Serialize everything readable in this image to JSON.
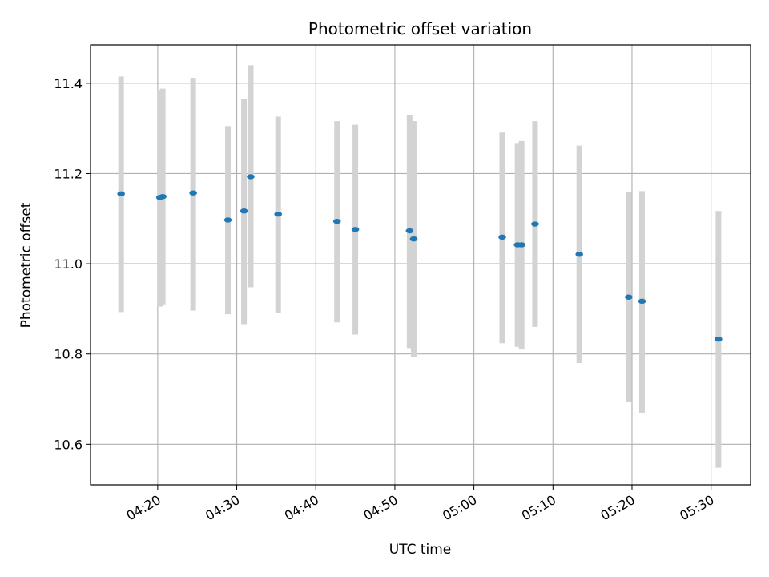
{
  "chart_data": {
    "type": "scatter",
    "title": "Photometric offset variation",
    "xlabel": "UTC time",
    "ylabel": "Photometric offset",
    "x_axis_type": "time",
    "xlim": [
      "04:11:30",
      "05:35:00"
    ],
    "ylim": [
      10.51,
      11.485
    ],
    "x_ticks": [
      "04:20",
      "04:30",
      "04:40",
      "04:50",
      "05:00",
      "05:10",
      "05:20",
      "05:30"
    ],
    "y_ticks": [
      "10.6",
      "10.8",
      "11.0",
      "11.2",
      "11.4"
    ],
    "y_tick_values": [
      10.6,
      10.8,
      11.0,
      11.2,
      11.4
    ],
    "grid": true,
    "marker_color": "#1f77b4",
    "errorbar_color": "#d3d3d3",
    "series": [
      {
        "points": [
          {
            "x": "04:15:22",
            "y": 11.155,
            "ymin": 10.893,
            "ymax": 11.415
          },
          {
            "x": "04:20:17",
            "y": 11.147,
            "ymin": 10.905,
            "ymax": 11.385
          },
          {
            "x": "04:20:38",
            "y": 11.149,
            "ymin": 10.91,
            "ymax": 11.388
          },
          {
            "x": "04:24:29",
            "y": 11.157,
            "ymin": 10.896,
            "ymax": 11.412
          },
          {
            "x": "04:28:53",
            "y": 11.097,
            "ymin": 10.888,
            "ymax": 11.305
          },
          {
            "x": "04:30:55",
            "y": 11.117,
            "ymin": 10.866,
            "ymax": 11.365
          },
          {
            "x": "04:31:46",
            "y": 11.193,
            "ymin": 10.948,
            "ymax": 11.44
          },
          {
            "x": "04:35:14",
            "y": 11.11,
            "ymin": 10.891,
            "ymax": 11.326
          },
          {
            "x": "04:42:41",
            "y": 11.094,
            "ymin": 10.87,
            "ymax": 11.316
          },
          {
            "x": "04:45:00",
            "y": 11.076,
            "ymin": 10.843,
            "ymax": 11.308
          },
          {
            "x": "04:51:52",
            "y": 11.073,
            "ymin": 10.813,
            "ymax": 11.33
          },
          {
            "x": "04:52:23",
            "y": 11.055,
            "ymin": 10.793,
            "ymax": 11.316
          },
          {
            "x": "05:03:35",
            "y": 11.059,
            "ymin": 10.824,
            "ymax": 11.291
          },
          {
            "x": "05:05:32",
            "y": 11.042,
            "ymin": 10.816,
            "ymax": 11.266
          },
          {
            "x": "05:06:02",
            "y": 11.042,
            "ymin": 10.81,
            "ymax": 11.272
          },
          {
            "x": "05:07:44",
            "y": 11.088,
            "ymin": 10.86,
            "ymax": 11.316
          },
          {
            "x": "05:13:20",
            "y": 11.021,
            "ymin": 10.78,
            "ymax": 11.262
          },
          {
            "x": "05:19:35",
            "y": 10.926,
            "ymin": 10.693,
            "ymax": 11.16
          },
          {
            "x": "05:21:16",
            "y": 10.917,
            "ymin": 10.67,
            "ymax": 11.161
          },
          {
            "x": "05:30:56",
            "y": 10.833,
            "ymin": 10.548,
            "ymax": 11.117
          }
        ]
      }
    ]
  }
}
